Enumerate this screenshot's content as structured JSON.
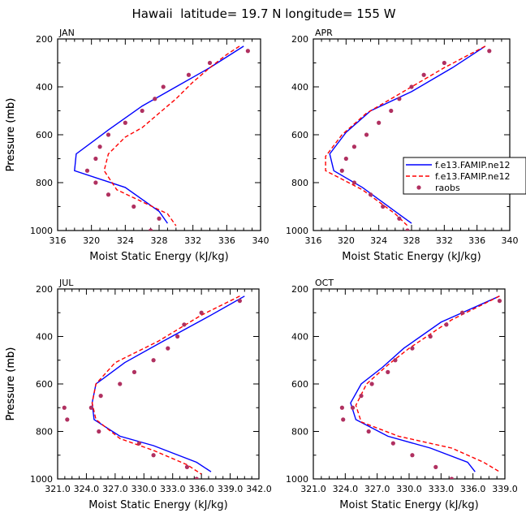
{
  "title": "Hawaii  latitude= 19.7 N longitude= 155 W",
  "legend": {
    "entries": [
      {
        "label": "f.e13.FAMIP.ne12",
        "style": "solid",
        "color": "#0000ff"
      },
      {
        "label": "f.e13.FAMIP.ne12",
        "style": "dashed",
        "color": "#ff0000"
      },
      {
        "label": "raobs",
        "style": "marker",
        "color": "#b03060"
      }
    ]
  },
  "colors": {
    "model_solid": "#0000ff",
    "model_dashed": "#ff0000",
    "raobs": "#b03060"
  },
  "chart_data": [
    {
      "type": "line",
      "panel_title": "JAN",
      "xlabel": "Moist Static Energy (kJ/kg)",
      "ylabel": "Pressure (mb)",
      "xlim": [
        316,
        340
      ],
      "ylim": [
        1000,
        200
      ],
      "xticks": [
        "316",
        "320",
        "324",
        "328",
        "332",
        "336",
        "340"
      ],
      "yticks": [
        "200",
        "400",
        "600",
        "800",
        "1000"
      ],
      "series": [
        {
          "name": "f.e13.FAMIP.ne12",
          "style": "solid",
          "x": [
            338,
            334,
            330,
            326,
            322,
            318.2,
            318,
            324,
            328,
            329
          ],
          "y": [
            230,
            320,
            400,
            480,
            580,
            680,
            750,
            820,
            920,
            970
          ]
        },
        {
          "name": "f.e13.FAMIP.ne12",
          "style": "dashed",
          "x": [
            337.5,
            336,
            334,
            332,
            330,
            328,
            326,
            324,
            322,
            321.5,
            323,
            326,
            329,
            330
          ],
          "y": [
            230,
            265,
            320,
            380,
            450,
            510,
            570,
            610,
            680,
            750,
            830,
            880,
            930,
            980
          ]
        },
        {
          "name": "raobs",
          "style": "marker",
          "x": [
            338.5,
            334,
            331.5,
            328.5,
            327.5,
            326,
            324,
            322,
            321,
            320.5,
            319.5,
            320.5,
            322,
            325,
            328,
            327
          ],
          "y": [
            250,
            300,
            350,
            400,
            450,
            500,
            550,
            600,
            650,
            700,
            750,
            800,
            850,
            900,
            950,
            1000
          ]
        }
      ]
    },
    {
      "type": "line",
      "panel_title": "APR",
      "xlabel": "Moist Static Energy (kJ/kg)",
      "ylabel": "Pressure (mb)",
      "xlim": [
        316,
        340
      ],
      "ylim": [
        1000,
        200
      ],
      "xticks": [
        "316",
        "320",
        "324",
        "328",
        "332",
        "336",
        "340"
      ],
      "yticks": [
        "200",
        "400",
        "600",
        "800",
        "1000"
      ],
      "series": [
        {
          "name": "f.e13.FAMIP.ne12",
          "style": "solid",
          "x": [
            337,
            333,
            328,
            323,
            320,
            318,
            318.5,
            322,
            326,
            328
          ],
          "y": [
            230,
            320,
            420,
            500,
            590,
            680,
            750,
            820,
            920,
            970
          ]
        },
        {
          "name": "f.e13.FAMIP.ne12",
          "style": "dashed",
          "x": [
            337,
            332,
            327,
            322.5,
            319.5,
            317.5,
            317.5,
            322,
            326,
            327.5
          ],
          "y": [
            230,
            320,
            420,
            510,
            600,
            690,
            750,
            830,
            930,
            980
          ]
        },
        {
          "name": "raobs",
          "style": "marker",
          "x": [
            337.5,
            332,
            329.5,
            328,
            326.5,
            325.5,
            324,
            322.5,
            321,
            320,
            319.5,
            321,
            323,
            324.5,
            326.5,
            327.5
          ],
          "y": [
            250,
            300,
            350,
            400,
            450,
            500,
            550,
            600,
            650,
            700,
            750,
            800,
            850,
            900,
            950,
            1000
          ]
        }
      ]
    },
    {
      "type": "line",
      "panel_title": "JUL",
      "xlabel": "Moist Static Energy (kJ/kg)",
      "ylabel": "Pressure (mb)",
      "xlim": [
        321,
        342
      ],
      "ylim": [
        1000,
        200
      ],
      "xticks": [
        "321.0",
        "324.0",
        "327.0",
        "330.0",
        "333.0",
        "336.0",
        "339.0",
        "342.0"
      ],
      "yticks": [
        "200",
        "400",
        "600",
        "800",
        "1000"
      ],
      "series": [
        {
          "name": "f.e13.FAMIP.ne12",
          "style": "solid",
          "x": [
            340.5,
            337,
            332,
            328,
            325,
            324.6,
            324.8,
            327.5,
            331,
            335.5,
            337
          ],
          "y": [
            230,
            310,
            420,
            510,
            600,
            680,
            750,
            820,
            860,
            930,
            970
          ]
        },
        {
          "name": "f.e13.FAMIP.ne12",
          "style": "dashed",
          "x": [
            340,
            336,
            331.5,
            327,
            325,
            324.6,
            325,
            327.5,
            331,
            334.5,
            336
          ],
          "y": [
            230,
            310,
            420,
            510,
            600,
            680,
            750,
            830,
            880,
            940,
            980
          ]
        },
        {
          "name": "raobs",
          "style": "marker",
          "x": [
            340,
            336,
            334.2,
            333.5,
            332.5,
            331,
            329,
            327.5,
            325.5,
            324.5,
            321.7,
            322,
            325.3,
            329.5,
            331,
            334.5,
            335.5
          ],
          "y": [
            250,
            300,
            350,
            400,
            450,
            500,
            550,
            600,
            650,
            700,
            700,
            750,
            800,
            850,
            900,
            950,
            1000
          ]
        }
      ]
    },
    {
      "type": "line",
      "panel_title": "OCT",
      "xlabel": "Moist Static Energy (kJ/kg)",
      "ylabel": "Pressure (mb)",
      "xlim": [
        321,
        339
      ],
      "ylim": [
        1000,
        200
      ],
      "xticks": [
        "321.0",
        "324.0",
        "327.0",
        "330.0",
        "333.0",
        "336.0",
        "339.0"
      ],
      "yticks": [
        "200",
        "400",
        "600",
        "800",
        "1000"
      ],
      "series": [
        {
          "name": "f.e13.FAMIP.ne12",
          "style": "solid",
          "x": [
            338.5,
            333,
            329.5,
            327.5,
            325.5,
            324.5,
            325,
            328,
            332,
            335.5,
            336.2
          ],
          "y": [
            230,
            340,
            450,
            530,
            600,
            680,
            750,
            820,
            870,
            930,
            970
          ]
        },
        {
          "name": "f.e13.FAMIP.ne12",
          "style": "dashed",
          "x": [
            338.5,
            334,
            330,
            328,
            326,
            325,
            325.5,
            329,
            334,
            337,
            338.5
          ],
          "y": [
            230,
            330,
            450,
            520,
            600,
            690,
            760,
            820,
            870,
            930,
            970
          ]
        },
        {
          "name": "raobs",
          "style": "marker",
          "x": [
            338.5,
            335,
            333.5,
            332,
            330.3,
            328.7,
            328,
            326.5,
            325.5,
            324.7,
            323.7,
            323.8,
            326.2,
            328.5,
            330.3,
            332.5,
            334
          ],
          "y": [
            250,
            300,
            350,
            400,
            450,
            500,
            550,
            600,
            650,
            700,
            700,
            750,
            800,
            850,
            900,
            950,
            1000
          ]
        }
      ]
    }
  ]
}
